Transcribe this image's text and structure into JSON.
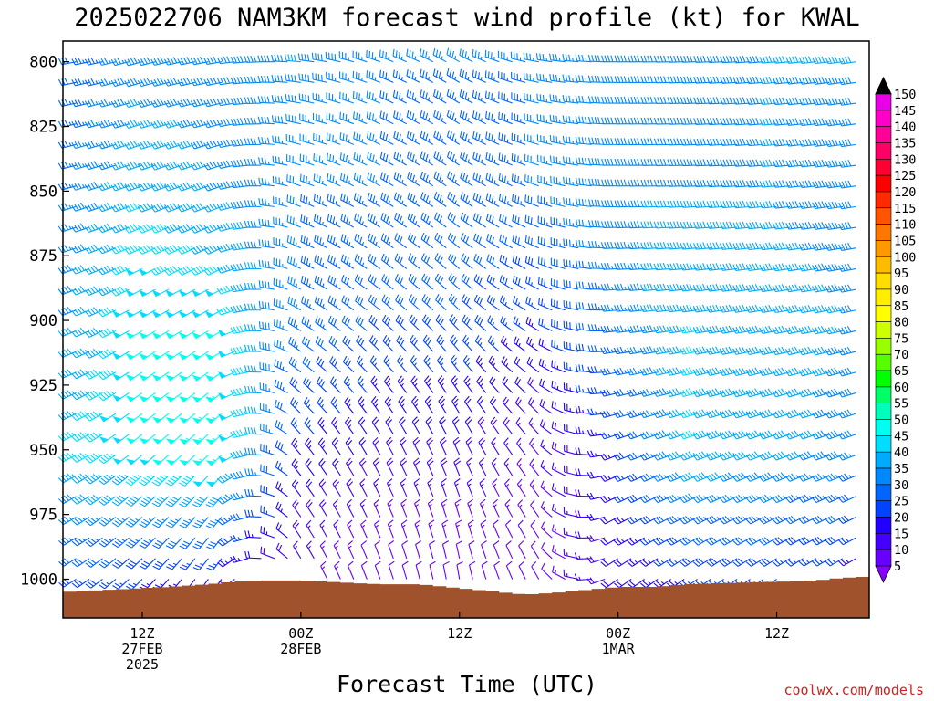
{
  "chart_data": {
    "type": "wind_barb_time_height",
    "title": "2025022706 NAM3KM forecast wind profile (kt) for KWAL",
    "xlabel": "Forecast Time (UTC)",
    "credit": "coolwx.com/models",
    "x_ticks": [
      {
        "hour": 6,
        "lines": [
          "12Z",
          "27FEB",
          "2025"
        ]
      },
      {
        "hour": 18,
        "lines": [
          "00Z",
          "28FEB"
        ]
      },
      {
        "hour": 30,
        "lines": [
          "12Z"
        ]
      },
      {
        "hour": 42,
        "lines": [
          "00Z",
          "1MAR"
        ]
      },
      {
        "hour": 54,
        "lines": [
          "12Z"
        ]
      }
    ],
    "x_range_hours": [
      0,
      61
    ],
    "y_axis": {
      "label_values": [
        800,
        825,
        850,
        875,
        900,
        925,
        950,
        975,
        1000
      ],
      "range_hpa": [
        792,
        1015
      ]
    },
    "colorbar": {
      "unit": "kt",
      "labels": [
        150,
        145,
        140,
        135,
        130,
        125,
        120,
        115,
        110,
        105,
        100,
        95,
        90,
        85,
        80,
        75,
        70,
        65,
        60,
        55,
        50,
        45,
        40,
        35,
        30,
        25,
        20,
        15,
        10,
        5
      ],
      "colors": [
        "#e800e8",
        "#ff00c8",
        "#ff0099",
        "#ff0066",
        "#ff0033",
        "#ff0000",
        "#ff2a00",
        "#ff5500",
        "#ff7700",
        "#ff9900",
        "#ffbb00",
        "#ffdd00",
        "#ffee00",
        "#ffff00",
        "#ccff00",
        "#99ff00",
        "#55ff00",
        "#00ff00",
        "#00ff66",
        "#00ffbb",
        "#00ffee",
        "#00ddff",
        "#00aaff",
        "#0088ff",
        "#0066ff",
        "#0044ff",
        "#2200ff",
        "#4400ff",
        "#6600ff",
        "#8800ff"
      ]
    },
    "terrain_color": "#a0522d",
    "terrain_surface_hpa": [
      [
        0,
        1005
      ],
      [
        4,
        1004
      ],
      [
        8,
        1003
      ],
      [
        11,
        1002
      ],
      [
        13,
        1001
      ],
      [
        15,
        1000.5
      ],
      [
        18,
        1000.5
      ],
      [
        20,
        1001
      ],
      [
        24,
        1002
      ],
      [
        27,
        1002
      ],
      [
        29,
        1003
      ],
      [
        31,
        1004
      ],
      [
        33,
        1005
      ],
      [
        35,
        1006
      ],
      [
        38,
        1005
      ],
      [
        40,
        1004
      ],
      [
        42,
        1003
      ],
      [
        45,
        1003
      ],
      [
        47,
        1002
      ],
      [
        50,
        1001.5
      ],
      [
        54,
        1001
      ],
      [
        57,
        1000.5
      ],
      [
        59,
        999.5
      ],
      [
        61,
        999
      ]
    ],
    "barb_series": [
      {
        "hour": 0,
        "levels_hpa": [
          800,
          850,
          900,
          950,
          1000
        ],
        "dir_deg": [
          260,
          255,
          250,
          245,
          240
        ],
        "speed_kt": [
          30,
          33,
          38,
          45,
          30
        ]
      },
      {
        "hour": 6,
        "levels_hpa": [
          800,
          850,
          900,
          950,
          1000
        ],
        "dir_deg": [
          255,
          250,
          240,
          230,
          225
        ],
        "speed_kt": [
          38,
          45,
          50,
          50,
          25
        ]
      },
      {
        "hour": 12,
        "levels_hpa": [
          800,
          850,
          900,
          950,
          1000
        ],
        "dir_deg": [
          260,
          250,
          240,
          225,
          215
        ],
        "speed_kt": [
          38,
          40,
          50,
          55,
          20
        ]
      },
      {
        "hour": 18,
        "levels_hpa": [
          800,
          850,
          900,
          950,
          1000
        ],
        "dir_deg": [
          275,
          290,
          300,
          320,
          330
        ],
        "speed_kt": [
          40,
          35,
          35,
          25,
          15
        ]
      },
      {
        "hour": 24,
        "levels_hpa": [
          800,
          850,
          900,
          950,
          1000
        ],
        "dir_deg": [
          290,
          300,
          310,
          330,
          340
        ],
        "speed_kt": [
          35,
          35,
          30,
          20,
          10
        ]
      },
      {
        "hour": 30,
        "levels_hpa": [
          800,
          850,
          900,
          950,
          1000
        ],
        "dir_deg": [
          300,
          305,
          315,
          335,
          350
        ],
        "speed_kt": [
          35,
          33,
          30,
          20,
          10
        ]
      },
      {
        "hour": 36,
        "levels_hpa": [
          800,
          850,
          900,
          950,
          1000
        ],
        "dir_deg": [
          280,
          290,
          300,
          320,
          330
        ],
        "speed_kt": [
          35,
          35,
          25,
          15,
          10
        ]
      },
      {
        "hour": 42,
        "levels_hpa": [
          800,
          850,
          900,
          950,
          1000
        ],
        "dir_deg": [
          270,
          270,
          265,
          250,
          235
        ],
        "speed_kt": [
          38,
          40,
          35,
          25,
          20
        ]
      },
      {
        "hour": 48,
        "levels_hpa": [
          800,
          850,
          900,
          950,
          1000
        ],
        "dir_deg": [
          268,
          268,
          262,
          250,
          235
        ],
        "speed_kt": [
          38,
          40,
          45,
          45,
          25
        ]
      },
      {
        "hour": 54,
        "levels_hpa": [
          800,
          850,
          900,
          950,
          1000
        ],
        "dir_deg": [
          265,
          265,
          260,
          250,
          235
        ],
        "speed_kt": [
          40,
          40,
          42,
          42,
          25
        ]
      },
      {
        "hour": 60,
        "levels_hpa": [
          800,
          850,
          900,
          950,
          1000
        ],
        "dir_deg": [
          262,
          262,
          258,
          250,
          238
        ],
        "speed_kt": [
          40,
          38,
          40,
          38,
          22
        ]
      }
    ]
  }
}
